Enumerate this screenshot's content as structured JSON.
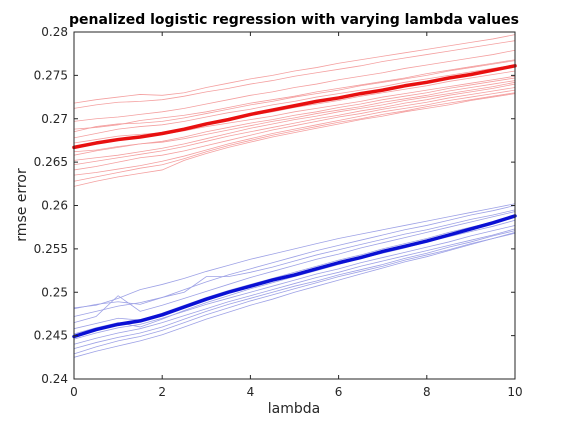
{
  "chart_data": {
    "type": "line",
    "title": "penalized logistic regression with varying lambda values",
    "xlabel": "lambda",
    "ylabel": "rmse error",
    "xlim": [
      0,
      10
    ],
    "ylim": [
      0.24,
      0.28
    ],
    "xticks": [
      "0",
      "2",
      "4",
      "6",
      "8",
      "10"
    ],
    "yticks": [
      "0.24",
      "0.245",
      "0.25",
      "0.255",
      "0.26",
      "0.265",
      "0.27",
      "0.275",
      "0.28"
    ],
    "grid": false,
    "legend": "none",
    "x": [
      0,
      0.5,
      1,
      1.5,
      2,
      2.5,
      3,
      3.5,
      4,
      4.5,
      5,
      5.5,
      6,
      6.5,
      7,
      7.5,
      8,
      8.5,
      9,
      9.5,
      10
    ],
    "colors": {
      "test_mean": "#e81010",
      "test_trials": "#f4a0a0",
      "train_mean": "#0a10d4",
      "train_trials": "#9ea2e6"
    },
    "series": [
      {
        "role": "test_mean",
        "values": [
          0.2667,
          0.2672,
          0.2676,
          0.2679,
          0.2683,
          0.2688,
          0.2694,
          0.2699,
          0.2705,
          0.271,
          0.2715,
          0.272,
          0.2724,
          0.2729,
          0.2733,
          0.2738,
          0.2742,
          0.2747,
          0.2751,
          0.2756,
          0.2761
        ]
      },
      {
        "role": "train_mean",
        "values": [
          0.2449,
          0.2457,
          0.2463,
          0.2467,
          0.2474,
          0.2483,
          0.2492,
          0.25,
          0.2507,
          0.2514,
          0.252,
          0.2527,
          0.2534,
          0.254,
          0.2547,
          0.2553,
          0.2559,
          0.2566,
          0.2573,
          0.258,
          0.2588
        ]
      }
    ],
    "trials": {
      "test": [
        [
          0.2718,
          0.2722,
          0.2725,
          0.2728,
          0.2727,
          0.273,
          0.2736,
          0.2741,
          0.2746,
          0.275,
          0.2755,
          0.2759,
          0.2764,
          0.2768,
          0.2772,
          0.2776,
          0.278,
          0.2784,
          0.2788,
          0.2792,
          0.2797
        ],
        [
          0.2712,
          0.2716,
          0.2719,
          0.272,
          0.2722,
          0.2726,
          0.2731,
          0.2735,
          0.274,
          0.2744,
          0.2749,
          0.2753,
          0.2757,
          0.2761,
          0.2766,
          0.277,
          0.2774,
          0.2778,
          0.2782,
          0.2786,
          0.279
        ],
        [
          0.2697,
          0.27,
          0.2702,
          0.2705,
          0.2708,
          0.2712,
          0.2717,
          0.2722,
          0.2727,
          0.2731,
          0.2736,
          0.274,
          0.2745,
          0.2749,
          0.2753,
          0.2758,
          0.2762,
          0.2766,
          0.277,
          0.2774,
          0.2779
        ],
        [
          0.2688,
          0.269,
          0.2693,
          0.2698,
          0.2701,
          0.2704,
          0.2708,
          0.2713,
          0.2718,
          0.2722,
          0.2726,
          0.2731,
          0.2735,
          0.2739,
          0.2743,
          0.2747,
          0.2752,
          0.2756,
          0.276,
          0.2764,
          0.2768
        ],
        [
          0.2685,
          0.2691,
          0.2694,
          0.2695,
          0.2697,
          0.2701,
          0.2706,
          0.2711,
          0.2716,
          0.272,
          0.2725,
          0.2729,
          0.2733,
          0.2738,
          0.2742,
          0.2746,
          0.275,
          0.2755,
          0.2759,
          0.2763,
          0.2767
        ],
        [
          0.2678,
          0.2683,
          0.2688,
          0.2691,
          0.2693,
          0.2697,
          0.2702,
          0.2707,
          0.2711,
          0.2716,
          0.272,
          0.2725,
          0.2729,
          0.2733,
          0.2737,
          0.2742,
          0.2746,
          0.275,
          0.2754,
          0.2758,
          0.2762
        ],
        [
          0.2672,
          0.2676,
          0.268,
          0.2682,
          0.2684,
          0.2689,
          0.2694,
          0.2699,
          0.2704,
          0.2708,
          0.2713,
          0.2717,
          0.2721,
          0.2726,
          0.273,
          0.2734,
          0.2738,
          0.2743,
          0.2747,
          0.2751,
          0.2755
        ],
        [
          0.2666,
          0.2671,
          0.2675,
          0.2679,
          0.2682,
          0.2686,
          0.2691,
          0.2695,
          0.2699,
          0.2703,
          0.2708,
          0.2712,
          0.2716,
          0.272,
          0.2725,
          0.2729,
          0.2733,
          0.2737,
          0.2741,
          0.2745,
          0.2749
        ],
        [
          0.2662,
          0.2664,
          0.2668,
          0.2671,
          0.2674,
          0.2679,
          0.2685,
          0.269,
          0.2695,
          0.2699,
          0.2704,
          0.2708,
          0.2713,
          0.2717,
          0.2722,
          0.2726,
          0.273,
          0.2735,
          0.2739,
          0.2743,
          0.2747
        ],
        [
          0.2658,
          0.2663,
          0.2667,
          0.2671,
          0.2673,
          0.2677,
          0.2682,
          0.2687,
          0.2692,
          0.2697,
          0.2701,
          0.2706,
          0.271,
          0.2714,
          0.2719,
          0.2723,
          0.2727,
          0.2732,
          0.2736,
          0.274,
          0.2744
        ],
        [
          0.2652,
          0.2655,
          0.2658,
          0.2662,
          0.2666,
          0.2671,
          0.2677,
          0.2683,
          0.2689,
          0.2694,
          0.2699,
          0.2703,
          0.2708,
          0.2712,
          0.2716,
          0.2721,
          0.2725,
          0.2729,
          0.2733,
          0.2737,
          0.2742
        ],
        [
          0.2647,
          0.2651,
          0.2655,
          0.2659,
          0.2663,
          0.2668,
          0.2674,
          0.268,
          0.2685,
          0.269,
          0.2695,
          0.27,
          0.2704,
          0.2709,
          0.2713,
          0.2718,
          0.2722,
          0.2727,
          0.2731,
          0.2735,
          0.274
        ],
        [
          0.2641,
          0.2645,
          0.265,
          0.2655,
          0.2658,
          0.2663,
          0.2669,
          0.2675,
          0.2681,
          0.2687,
          0.2692,
          0.2697,
          0.2702,
          0.2706,
          0.2711,
          0.2715,
          0.2719,
          0.2724,
          0.2728,
          0.2732,
          0.2736
        ],
        [
          0.2635,
          0.2638,
          0.2642,
          0.2646,
          0.2651,
          0.2657,
          0.2664,
          0.2671,
          0.2677,
          0.2683,
          0.2688,
          0.2693,
          0.2698,
          0.2703,
          0.2708,
          0.2712,
          0.2716,
          0.2721,
          0.2725,
          0.2729,
          0.2733
        ],
        [
          0.2628,
          0.2633,
          0.2638,
          0.2643,
          0.2647,
          0.2654,
          0.2662,
          0.2669,
          0.2675,
          0.2681,
          0.2686,
          0.2691,
          0.2696,
          0.27,
          0.2705,
          0.2709,
          0.2714,
          0.2718,
          0.2722,
          0.2726,
          0.273
        ],
        [
          0.2622,
          0.2628,
          0.2633,
          0.2637,
          0.2641,
          0.2652,
          0.266,
          0.2667,
          0.2673,
          0.2679,
          0.2684,
          0.2689,
          0.2694,
          0.2699,
          0.2703,
          0.2708,
          0.2712,
          0.2716,
          0.2721,
          0.2725,
          0.2729
        ]
      ],
      "train": [
        [
          0.2482,
          0.2485,
          0.2493,
          0.2503,
          0.2509,
          0.2516,
          0.2524,
          0.2531,
          0.2538,
          0.2544,
          0.255,
          0.2556,
          0.2562,
          0.2567,
          0.2572,
          0.2577,
          0.2582,
          0.2587,
          0.2592,
          0.2597,
          0.2602
        ],
        [
          0.2481,
          0.2486,
          0.2489,
          0.2486,
          0.2494,
          0.2503,
          0.2512,
          0.252,
          0.2527,
          0.2534,
          0.2541,
          0.2548,
          0.2554,
          0.256,
          0.2566,
          0.2572,
          0.2577,
          0.2583,
          0.2589,
          0.2594,
          0.26
        ],
        [
          0.2472,
          0.2478,
          0.2484,
          0.2488,
          0.2494,
          0.25,
          0.2518,
          0.2518,
          0.2523,
          0.2529,
          0.2536,
          0.2543,
          0.2549,
          0.2555,
          0.2561,
          0.2567,
          0.2572,
          0.2578,
          0.2584,
          0.2589,
          0.2595
        ],
        [
          0.2465,
          0.2472,
          0.2496,
          0.2478,
          0.2485,
          0.2493,
          0.2501,
          0.2509,
          0.2517,
          0.2524,
          0.2531,
          0.2538,
          0.2544,
          0.2551,
          0.2557,
          0.2563,
          0.2569,
          0.2575,
          0.2581,
          0.2587,
          0.2593
        ],
        [
          0.2458,
          0.2464,
          0.247,
          0.2468,
          0.2476,
          0.2485,
          0.2494,
          0.2502,
          0.2509,
          0.2516,
          0.2523,
          0.253,
          0.2537,
          0.2543,
          0.255,
          0.2556,
          0.2562,
          0.2569,
          0.2575,
          0.2581,
          0.2588
        ],
        [
          0.2452,
          0.2459,
          0.2465,
          0.246,
          0.2469,
          0.2479,
          0.2488,
          0.2496,
          0.2504,
          0.2511,
          0.2518,
          0.2525,
          0.2532,
          0.2539,
          0.2545,
          0.2551,
          0.2558,
          0.2564,
          0.257,
          0.2576,
          0.2583
        ],
        [
          0.2446,
          0.2453,
          0.2459,
          0.2463,
          0.247,
          0.2478,
          0.2486,
          0.2493,
          0.25,
          0.2507,
          0.2514,
          0.2521,
          0.2527,
          0.2534,
          0.254,
          0.2546,
          0.2552,
          0.2558,
          0.2565,
          0.2571,
          0.2577
        ],
        [
          0.244,
          0.2447,
          0.2453,
          0.2458,
          0.2465,
          0.2473,
          0.2481,
          0.2489,
          0.2496,
          0.2503,
          0.251,
          0.2517,
          0.2523,
          0.253,
          0.2536,
          0.2542,
          0.2548,
          0.2554,
          0.256,
          0.2566,
          0.2573
        ],
        [
          0.2435,
          0.2442,
          0.2448,
          0.2453,
          0.246,
          0.2469,
          0.2478,
          0.2486,
          0.2493,
          0.25,
          0.2507,
          0.2513,
          0.252,
          0.2526,
          0.2532,
          0.2539,
          0.2545,
          0.2552,
          0.2558,
          0.2565,
          0.2571
        ],
        [
          0.2429,
          0.2437,
          0.2444,
          0.2449,
          0.2456,
          0.2465,
          0.2474,
          0.2482,
          0.249,
          0.2497,
          0.2504,
          0.2511,
          0.2518,
          0.2524,
          0.253,
          0.2537,
          0.2543,
          0.2549,
          0.2556,
          0.2562,
          0.2569
        ],
        [
          0.2425,
          0.2432,
          0.2438,
          0.2444,
          0.2451,
          0.246,
          0.2469,
          0.2477,
          0.2485,
          0.2492,
          0.25,
          0.2507,
          0.2514,
          0.2521,
          0.2528,
          0.2535,
          0.2541,
          0.2548,
          0.2555,
          0.2562,
          0.2568
        ]
      ]
    }
  }
}
